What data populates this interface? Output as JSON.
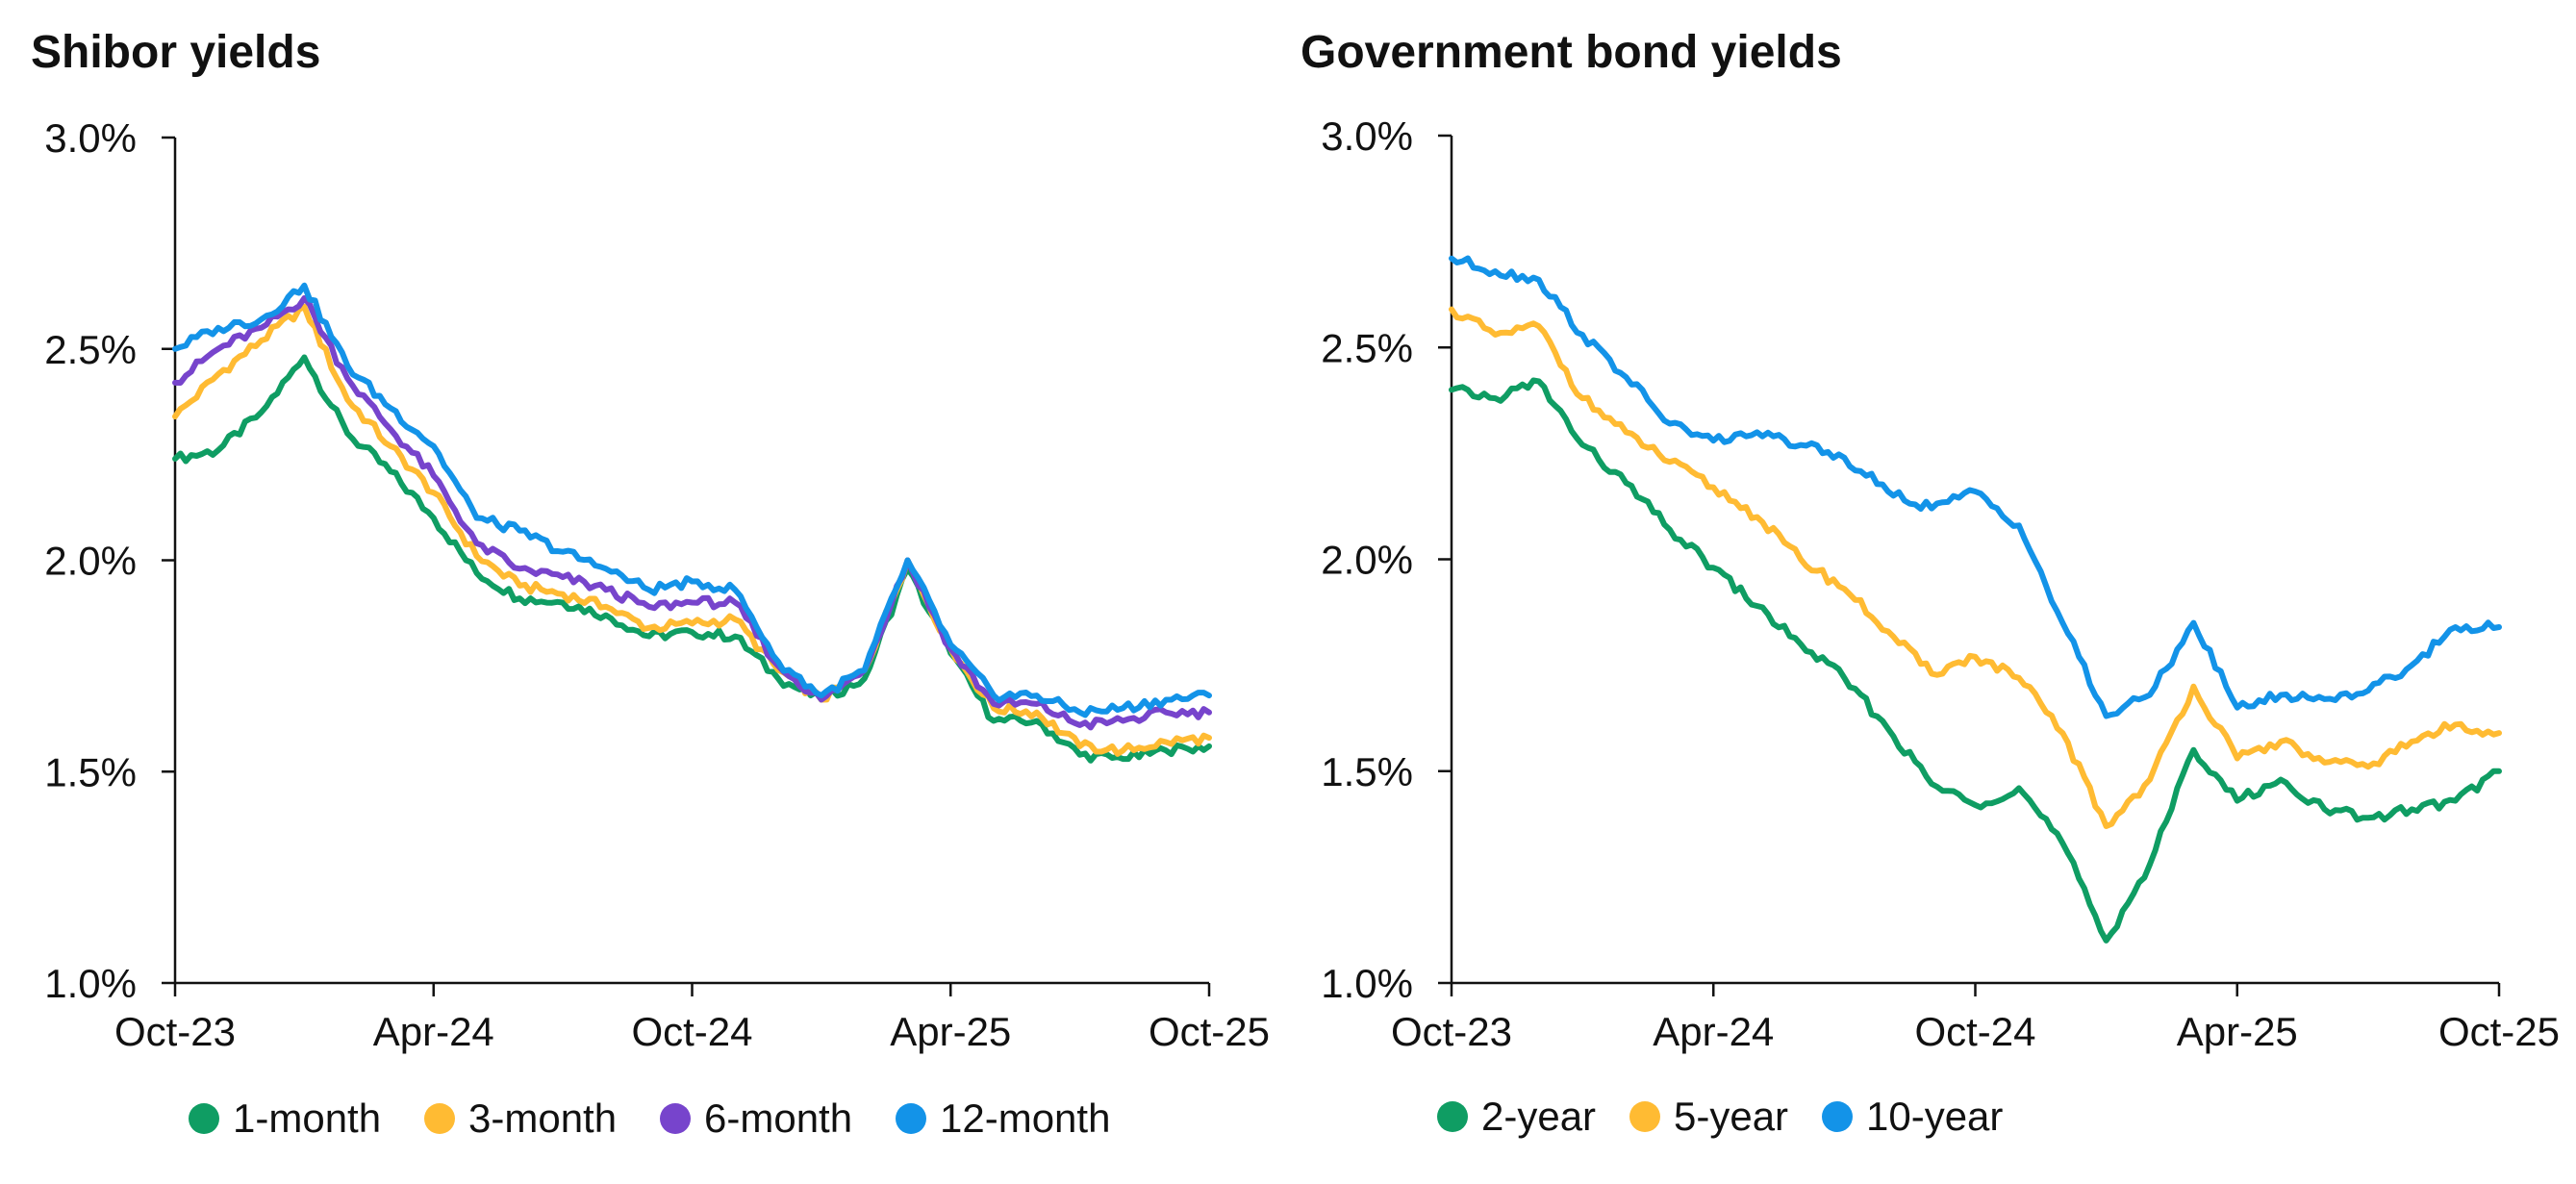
{
  "chart_data": [
    {
      "type": "line",
      "title": "Shibor yields",
      "x_ticks": [
        "Oct-23",
        "Apr-24",
        "Oct-24",
        "Apr-25",
        "Oct-25"
      ],
      "x_range": [
        "2023-10",
        "2025-10"
      ],
      "y_ticks": [
        "1.0%",
        "1.5%",
        "2.0%",
        "2.5%",
        "3.0%"
      ],
      "ylim": [
        1.0,
        3.0
      ],
      "grid": false,
      "legend": "bottom",
      "series": [
        {
          "name": "1-month",
          "color": "#0f9d63",
          "points": [
            [
              "2023-10",
              2.24
            ],
            [
              "2023-11",
              2.26
            ],
            [
              "2023-12",
              2.35
            ],
            [
              "2024-01",
              2.48
            ],
            [
              "2024-02",
              2.3
            ],
            [
              "2024-03",
              2.21
            ],
            [
              "2024-04",
              2.1
            ],
            [
              "2024-05",
              1.97
            ],
            [
              "2024-06",
              1.91
            ],
            [
              "2024-07",
              1.9
            ],
            [
              "2024-08",
              1.87
            ],
            [
              "2024-09",
              1.82
            ],
            [
              "2024-10",
              1.83
            ],
            [
              "2024-11",
              1.82
            ],
            [
              "2024-12",
              1.72
            ],
            [
              "2025-01",
              1.67
            ],
            [
              "2025-02",
              1.72
            ],
            [
              "2025-03",
              1.98
            ],
            [
              "2025-04",
              1.78
            ],
            [
              "2025-05",
              1.62
            ],
            [
              "2025-06",
              1.62
            ],
            [
              "2025-07",
              1.54
            ],
            [
              "2025-08",
              1.53
            ],
            [
              "2025-09",
              1.55
            ],
            [
              "2025-10",
              1.56
            ]
          ]
        },
        {
          "name": "3-month",
          "color": "#ffbb33",
          "points": [
            [
              "2023-10",
              2.34
            ],
            [
              "2023-11",
              2.44
            ],
            [
              "2023-12",
              2.52
            ],
            [
              "2024-01",
              2.6
            ],
            [
              "2024-02",
              2.38
            ],
            [
              "2024-03",
              2.27
            ],
            [
              "2024-04",
              2.16
            ],
            [
              "2024-05",
              2.01
            ],
            [
              "2024-06",
              1.94
            ],
            [
              "2024-07",
              1.92
            ],
            [
              "2024-08",
              1.89
            ],
            [
              "2024-09",
              1.84
            ],
            [
              "2024-10",
              1.85
            ],
            [
              "2024-11",
              1.86
            ],
            [
              "2024-12",
              1.74
            ],
            [
              "2025-01",
              1.67
            ],
            [
              "2025-02",
              1.74
            ],
            [
              "2025-03",
              2.0
            ],
            [
              "2025-04",
              1.79
            ],
            [
              "2025-05",
              1.65
            ],
            [
              "2025-06",
              1.64
            ],
            [
              "2025-07",
              1.56
            ],
            [
              "2025-08",
              1.55
            ],
            [
              "2025-09",
              1.57
            ],
            [
              "2025-10",
              1.58
            ]
          ]
        },
        {
          "name": "6-month",
          "color": "#7744cc",
          "points": [
            [
              "2023-10",
              2.42
            ],
            [
              "2023-11",
              2.5
            ],
            [
              "2023-12",
              2.55
            ],
            [
              "2024-01",
              2.62
            ],
            [
              "2024-02",
              2.43
            ],
            [
              "2024-03",
              2.31
            ],
            [
              "2024-04",
              2.2
            ],
            [
              "2024-05",
              2.04
            ],
            [
              "2024-06",
              1.98
            ],
            [
              "2024-07",
              1.96
            ],
            [
              "2024-08",
              1.93
            ],
            [
              "2024-09",
              1.89
            ],
            [
              "2024-10",
              1.9
            ],
            [
              "2024-11",
              1.9
            ],
            [
              "2024-12",
              1.75
            ],
            [
              "2025-01",
              1.67
            ],
            [
              "2025-02",
              1.74
            ],
            [
              "2025-03",
              2.0
            ],
            [
              "2025-04",
              1.79
            ],
            [
              "2025-05",
              1.66
            ],
            [
              "2025-06",
              1.66
            ],
            [
              "2025-07",
              1.61
            ],
            [
              "2025-08",
              1.62
            ],
            [
              "2025-09",
              1.64
            ],
            [
              "2025-10",
              1.64
            ]
          ]
        },
        {
          "name": "12-month",
          "color": "#1393e8",
          "points": [
            [
              "2023-10",
              2.5
            ],
            [
              "2023-11",
              2.55
            ],
            [
              "2023-12",
              2.57
            ],
            [
              "2024-01",
              2.65
            ],
            [
              "2024-02",
              2.46
            ],
            [
              "2024-03",
              2.36
            ],
            [
              "2024-04",
              2.27
            ],
            [
              "2024-05",
              2.1
            ],
            [
              "2024-06",
              2.07
            ],
            [
              "2024-07",
              2.02
            ],
            [
              "2024-08",
              1.98
            ],
            [
              "2024-09",
              1.93
            ],
            [
              "2024-10",
              1.95
            ],
            [
              "2024-11",
              1.93
            ],
            [
              "2024-12",
              1.76
            ],
            [
              "2025-01",
              1.68
            ],
            [
              "2025-02",
              1.74
            ],
            [
              "2025-03",
              2.0
            ],
            [
              "2025-04",
              1.8
            ],
            [
              "2025-05",
              1.68
            ],
            [
              "2025-06",
              1.68
            ],
            [
              "2025-07",
              1.64
            ],
            [
              "2025-08",
              1.65
            ],
            [
              "2025-09",
              1.67
            ],
            [
              "2025-10",
              1.68
            ]
          ]
        }
      ]
    },
    {
      "type": "line",
      "title": "Government bond yields",
      "x_ticks": [
        "Oct-23",
        "Apr-24",
        "Oct-24",
        "Apr-25",
        "Oct-25"
      ],
      "x_range": [
        "2023-10",
        "2025-10"
      ],
      "y_ticks": [
        "1.0%",
        "1.5%",
        "2.0%",
        "2.5%",
        "3.0%"
      ],
      "ylim": [
        1.0,
        3.0
      ],
      "grid": false,
      "legend": "bottom",
      "series": [
        {
          "name": "2-year",
          "color": "#0f9d63",
          "points": [
            [
              "2023-10",
              2.4
            ],
            [
              "2023-11",
              2.38
            ],
            [
              "2023-12",
              2.42
            ],
            [
              "2024-01",
              2.27
            ],
            [
              "2024-02",
              2.18
            ],
            [
              "2024-03",
              2.07
            ],
            [
              "2024-04",
              1.98
            ],
            [
              "2024-05",
              1.89
            ],
            [
              "2024-06",
              1.8
            ],
            [
              "2024-07",
              1.72
            ],
            [
              "2024-08",
              1.6
            ],
            [
              "2024-09",
              1.47
            ],
            [
              "2024-10",
              1.42
            ],
            [
              "2024-11",
              1.46
            ],
            [
              "2024-12",
              1.33
            ],
            [
              "2025-01",
              1.1
            ],
            [
              "2025-02",
              1.28
            ],
            [
              "2025-03",
              1.55
            ],
            [
              "2025-04",
              1.43
            ],
            [
              "2025-05",
              1.48
            ],
            [
              "2025-06",
              1.41
            ],
            [
              "2025-07",
              1.39
            ],
            [
              "2025-08",
              1.41
            ],
            [
              "2025-09",
              1.43
            ],
            [
              "2025-10",
              1.5
            ]
          ]
        },
        {
          "name": "5-year",
          "color": "#ffbb33",
          "points": [
            [
              "2023-10",
              2.59
            ],
            [
              "2023-11",
              2.53
            ],
            [
              "2023-12",
              2.55
            ],
            [
              "2024-01",
              2.38
            ],
            [
              "2024-02",
              2.3
            ],
            [
              "2024-03",
              2.23
            ],
            [
              "2024-04",
              2.17
            ],
            [
              "2024-05",
              2.1
            ],
            [
              "2024-06",
              2.0
            ],
            [
              "2024-07",
              1.93
            ],
            [
              "2024-08",
              1.83
            ],
            [
              "2024-09",
              1.73
            ],
            [
              "2024-10",
              1.77
            ],
            [
              "2024-11",
              1.72
            ],
            [
              "2024-12",
              1.59
            ],
            [
              "2025-01",
              1.37
            ],
            [
              "2025-02",
              1.48
            ],
            [
              "2025-03",
              1.7
            ],
            [
              "2025-04",
              1.53
            ],
            [
              "2025-05",
              1.57
            ],
            [
              "2025-06",
              1.52
            ],
            [
              "2025-07",
              1.51
            ],
            [
              "2025-08",
              1.57
            ],
            [
              "2025-09",
              1.61
            ],
            [
              "2025-10",
              1.59
            ]
          ]
        },
        {
          "name": "10-year",
          "color": "#1393e8",
          "points": [
            [
              "2023-10",
              2.71
            ],
            [
              "2023-11",
              2.68
            ],
            [
              "2023-12",
              2.66
            ],
            [
              "2024-01",
              2.53
            ],
            [
              "2024-02",
              2.43
            ],
            [
              "2024-03",
              2.32
            ],
            [
              "2024-04",
              2.28
            ],
            [
              "2024-05",
              2.3
            ],
            [
              "2024-06",
              2.27
            ],
            [
              "2024-07",
              2.24
            ],
            [
              "2024-08",
              2.16
            ],
            [
              "2024-09",
              2.12
            ],
            [
              "2024-10",
              2.16
            ],
            [
              "2024-11",
              2.08
            ],
            [
              "2024-12",
              1.85
            ],
            [
              "2025-01",
              1.63
            ],
            [
              "2025-02",
              1.68
            ],
            [
              "2025-03",
              1.85
            ],
            [
              "2025-04",
              1.65
            ],
            [
              "2025-05",
              1.68
            ],
            [
              "2025-06",
              1.67
            ],
            [
              "2025-07",
              1.69
            ],
            [
              "2025-08",
              1.75
            ],
            [
              "2025-09",
              1.84
            ],
            [
              "2025-10",
              1.84
            ]
          ]
        }
      ]
    }
  ]
}
